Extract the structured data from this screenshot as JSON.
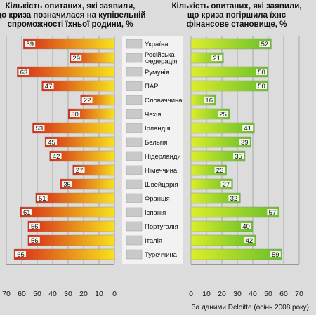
{
  "chart_data": {
    "type": "bar",
    "titles": {
      "left": [
        "Кількість опитаних, які заявили,",
        "що криза позначилася на купівельній",
        "спроможності їхньої родини, %"
      ],
      "right": [
        "Кількість опитаних, які заявили,",
        "що криза погіршила їхнє",
        "фінансове становище, %"
      ]
    },
    "categories": [
      "Україна",
      "Російська Федерація",
      "Румунія",
      "ПАР",
      "Словаччина",
      "Чехія",
      "Ірландія",
      "Бельгія",
      "Нідерланди",
      "Німеччина",
      "Швейцарія",
      "Франція",
      "Іспанія",
      "Португалія",
      "Італія",
      "Туреччина"
    ],
    "category_lines": [
      [
        "Україна"
      ],
      [
        "Російська",
        "Федерація"
      ],
      [
        "Румунія"
      ],
      [
        "ПАР"
      ],
      [
        "Словаччина"
      ],
      [
        "Чехія"
      ],
      [
        "Ірландія"
      ],
      [
        "Бельгія"
      ],
      [
        "Нідерланди"
      ],
      [
        "Німеччина"
      ],
      [
        "Швейцарія"
      ],
      [
        "Франція"
      ],
      [
        "Іспанія"
      ],
      [
        "Португалія"
      ],
      [
        "Італія"
      ],
      [
        "Туреччина"
      ]
    ],
    "series": [
      {
        "values": [
          59,
          29,
          63,
          47,
          22,
          30,
          53,
          45,
          42,
          27,
          35,
          51,
          61,
          56,
          56,
          65
        ]
      },
      {
        "values": [
          52,
          21,
          50,
          50,
          16,
          25,
          41,
          39,
          35,
          23,
          27,
          32,
          57,
          40,
          42,
          59
        ]
      }
    ],
    "xlim": [
      0,
      70
    ],
    "ticks": [
      "70",
      "60",
      "50",
      "40",
      "30",
      "20",
      "10",
      "0"
    ],
    "ticks_right": [
      "0",
      "10",
      "20",
      "30",
      "40",
      "50",
      "60",
      "70"
    ],
    "source": "За даними Deloitte (осінь 2008 року)",
    "colors": {
      "left_start": "#d62a1a",
      "left_end": "#f8e21c",
      "right_start": "#66bf2a",
      "right_end": "#dcee2a",
      "value_box": "#f4f4ee"
    }
  }
}
